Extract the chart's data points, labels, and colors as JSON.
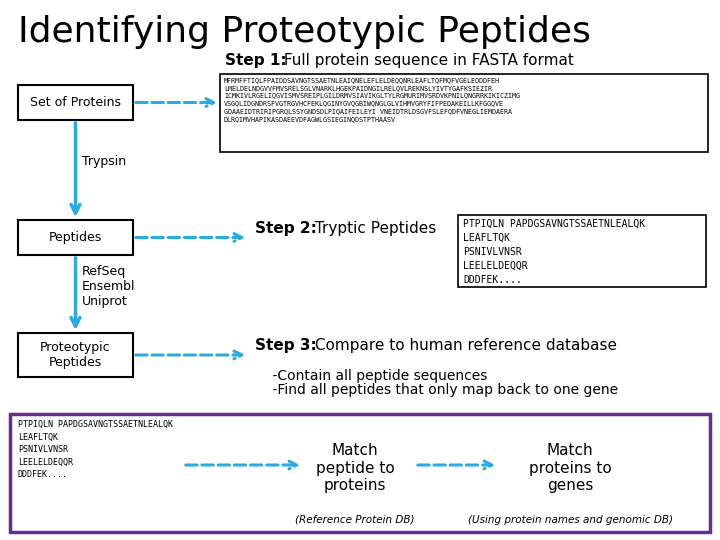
{
  "title": "Identifying Proteotypic Peptides",
  "bg_color": "#ffffff",
  "title_fontsize": 26,
  "cyan_color": "#29ABE2",
  "purple_color": "#662D91",
  "fasta_text": "MFRMFFTIQLFPAIDDSAVNGTSSAETNLEAIQNELEELELDEQQNRLEAFLTQFMQFVGELEODDFEH\n  LMELDELNDGVVFMVSRELSGLVNARKLHFEKPAIDNGILRELQVLREKNSLYIVTYGAFKSIEZIR\n  ICMKIVLRGELIQGVISMVSREIPLGILDRМVSIAVIKGLTYLRGMURIMVSRDVKPNILQNGRRKIKICZIMG\n  VSGQLIDGNDRS FVGTRGVHCFEKLQGINYGVQGBIWQNGLGLVIHMVGRYFIFPEDAKEILLKFGGQVE\n  GDAAEIDTRIRIPGRQLSSYGNDSDLPIQAIFEILEYI VNEIDTRLDSGVFSLEFQDFVNEGLIEMDAERA\n  DLRQIMVHAPIKASDAEEVDFAGWLGSIEGINQDSTPTHAASV",
  "step1_label": "Step 1:",
  "step1_text": " Full protein sequence in FASTA format",
  "step2_label": "Step 2:",
  "step2_text": " Tryptic Peptides",
  "step3_label": "Step 3:",
  "step3_text": " Compare to human reference database",
  "step3_sub1": "    -Contain all peptide sequences",
  "step3_sub2": "    -Find all peptides that only map back to one gene",
  "box1_label": "Set of Proteins",
  "box2_label": "Peptides",
  "box3_label": "Proteotypic\nPeptides",
  "trypsin_label": "Trypsin",
  "refseq_label": "RefSeq\nEnsembl\nUniprot",
  "tryptic_peptides": "PTPIQLN PAPDGSAVNGTSSAETNLEALQK\nLEAFLTQK\nPSNIVLVNSR\nLEELELDEQQR\nDDDFEK....",
  "bottom_peptides": "PTPIQLN PAPDGSAVNGTSSAETNLEALQK\nLEAFLTQK\nPSNIVLVNSR\nLEELELDEQQR\nDDDFEK....",
  "match1_label": "Match\npeptide to\nproteins",
  "match1_sub": "(Reference Protein DB)",
  "match2_label": "Match\nproteins to\ngenes",
  "match2_sub": "(Using protein names and genomic DB)"
}
